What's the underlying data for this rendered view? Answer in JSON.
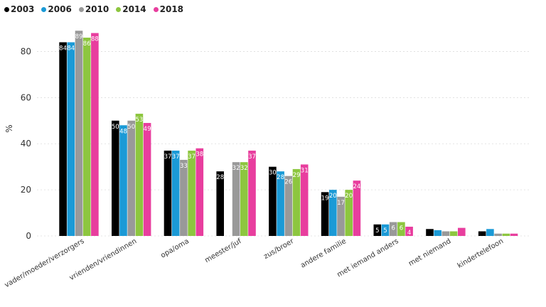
{
  "chart_data": {
    "type": "bar",
    "title": "",
    "xlabel": "",
    "ylabel": "%",
    "ylim": [
      0,
      90
    ],
    "yticks": [
      0,
      20,
      40,
      60,
      80
    ],
    "grid": true,
    "legend_position": "top-left",
    "categories": [
      "vader/moeder/verzorgers",
      "vrienden/vriendinnen",
      "opa/oma",
      "meester/juf",
      "zus/broer",
      "andere familie",
      "met iemand anders",
      "met niemand",
      "kindertelefoon"
    ],
    "series": [
      {
        "name": "2003",
        "color": "#000000",
        "values": [
          84,
          50,
          37,
          28,
          30,
          19,
          5,
          3,
          2
        ],
        "labels": [
          84,
          50,
          37,
          28,
          30,
          19,
          5,
          null,
          null
        ]
      },
      {
        "name": "2006",
        "color": "#1b9ad6",
        "values": [
          84,
          48,
          37,
          null,
          28,
          20,
          5,
          2.5,
          3
        ],
        "labels": [
          84,
          48,
          37,
          null,
          28,
          20,
          5,
          null,
          null
        ]
      },
      {
        "name": "2010",
        "color": "#999999",
        "values": [
          89,
          50,
          33,
          32,
          26,
          17,
          6,
          2,
          1
        ],
        "labels": [
          89,
          50,
          33,
          32,
          26,
          17,
          6,
          null,
          null
        ]
      },
      {
        "name": "2014",
        "color": "#8dc63f",
        "values": [
          86,
          53,
          37,
          32,
          29,
          20,
          6,
          2,
          1
        ],
        "labels": [
          86,
          53,
          37,
          32,
          29,
          20,
          6,
          null,
          null
        ]
      },
      {
        "name": "2018",
        "color": "#e83e9e",
        "values": [
          88,
          49,
          38,
          37,
          31,
          24,
          4,
          3.5,
          1
        ],
        "labels": [
          88,
          49,
          38,
          37,
          31,
          24,
          4,
          null,
          null
        ]
      }
    ]
  }
}
